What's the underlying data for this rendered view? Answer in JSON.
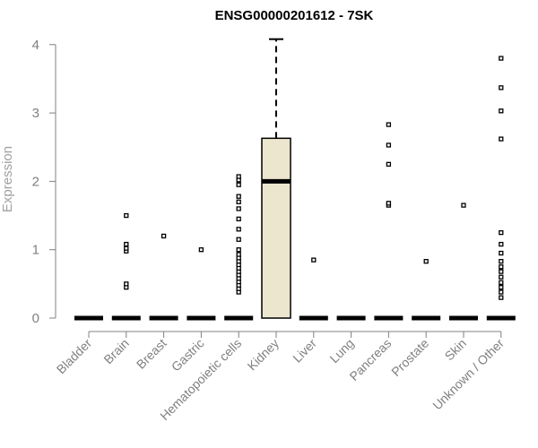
{
  "chart_data": {
    "type": "box",
    "title": "ENSG00000201612 - 7SK",
    "ylabel": "Expression",
    "xlabel": "",
    "ylim": [
      0,
      4.1
    ],
    "yticks": [
      0,
      1,
      2,
      3,
      4
    ],
    "grid": false,
    "legend": "none",
    "colors": {
      "box_fill": "#ede6cf",
      "box_stroke": "#000000",
      "median": "#000000",
      "outlier": "#000000",
      "axis": "#808080"
    },
    "categories": [
      "Bladder",
      "Brain",
      "Breast",
      "Gastric",
      "Hematopoietic cells",
      "Kidney",
      "Liver",
      "Lung",
      "Pancreas",
      "Prostate",
      "Skin",
      "Unknown / Other"
    ],
    "boxes": [
      {
        "category": "Bladder",
        "q1": 0,
        "median": 0,
        "q3": 0,
        "whisker_low": 0,
        "whisker_high": 0,
        "outliers": []
      },
      {
        "category": "Brain",
        "q1": 0,
        "median": 0,
        "q3": 0,
        "whisker_low": 0,
        "whisker_high": 0,
        "outliers": [
          0.45,
          0.5,
          0.98,
          1.02,
          1.08,
          1.5
        ]
      },
      {
        "category": "Breast",
        "q1": 0,
        "median": 0,
        "q3": 0,
        "whisker_low": 0,
        "whisker_high": 0,
        "outliers": [
          1.2
        ]
      },
      {
        "category": "Gastric",
        "q1": 0,
        "median": 0,
        "q3": 0,
        "whisker_low": 0,
        "whisker_high": 0,
        "outliers": [
          1.0
        ]
      },
      {
        "category": "Hematopoietic cells",
        "q1": 0,
        "median": 0,
        "q3": 0,
        "whisker_low": 0,
        "whisker_high": 0,
        "outliers": [
          0.38,
          0.43,
          0.48,
          0.53,
          0.58,
          0.63,
          0.68,
          0.73,
          0.78,
          0.83,
          0.88,
          0.93,
          1.0,
          1.15,
          1.3,
          1.45,
          1.6,
          1.7,
          1.78,
          1.95,
          2.02,
          2.07
        ]
      },
      {
        "category": "Kidney",
        "q1": 0,
        "median": 2.0,
        "q3": 2.63,
        "whisker_low": 0,
        "whisker_high": 4.08,
        "outliers": []
      },
      {
        "category": "Liver",
        "q1": 0,
        "median": 0,
        "q3": 0,
        "whisker_low": 0,
        "whisker_high": 0,
        "outliers": [
          0.85
        ]
      },
      {
        "category": "Lung",
        "q1": 0,
        "median": 0,
        "q3": 0,
        "whisker_low": 0,
        "whisker_high": 0,
        "outliers": []
      },
      {
        "category": "Pancreas",
        "q1": 0,
        "median": 0,
        "q3": 0,
        "whisker_low": 0,
        "whisker_high": 0,
        "outliers": [
          1.65,
          1.68,
          2.25,
          2.53,
          2.83
        ]
      },
      {
        "category": "Prostate",
        "q1": 0,
        "median": 0,
        "q3": 0,
        "whisker_low": 0,
        "whisker_high": 0,
        "outliers": [
          0.83
        ]
      },
      {
        "category": "Skin",
        "q1": 0,
        "median": 0,
        "q3": 0,
        "whisker_low": 0,
        "whisker_high": 0,
        "outliers": [
          1.65
        ]
      },
      {
        "category": "Unknown / Other",
        "q1": 0,
        "median": 0,
        "q3": 0,
        "whisker_low": 0,
        "whisker_high": 0,
        "outliers": [
          0.3,
          0.38,
          0.45,
          0.52,
          0.6,
          0.68,
          0.75,
          0.83,
          0.95,
          1.08,
          1.25,
          2.62,
          3.03,
          3.37,
          3.8
        ]
      }
    ]
  }
}
